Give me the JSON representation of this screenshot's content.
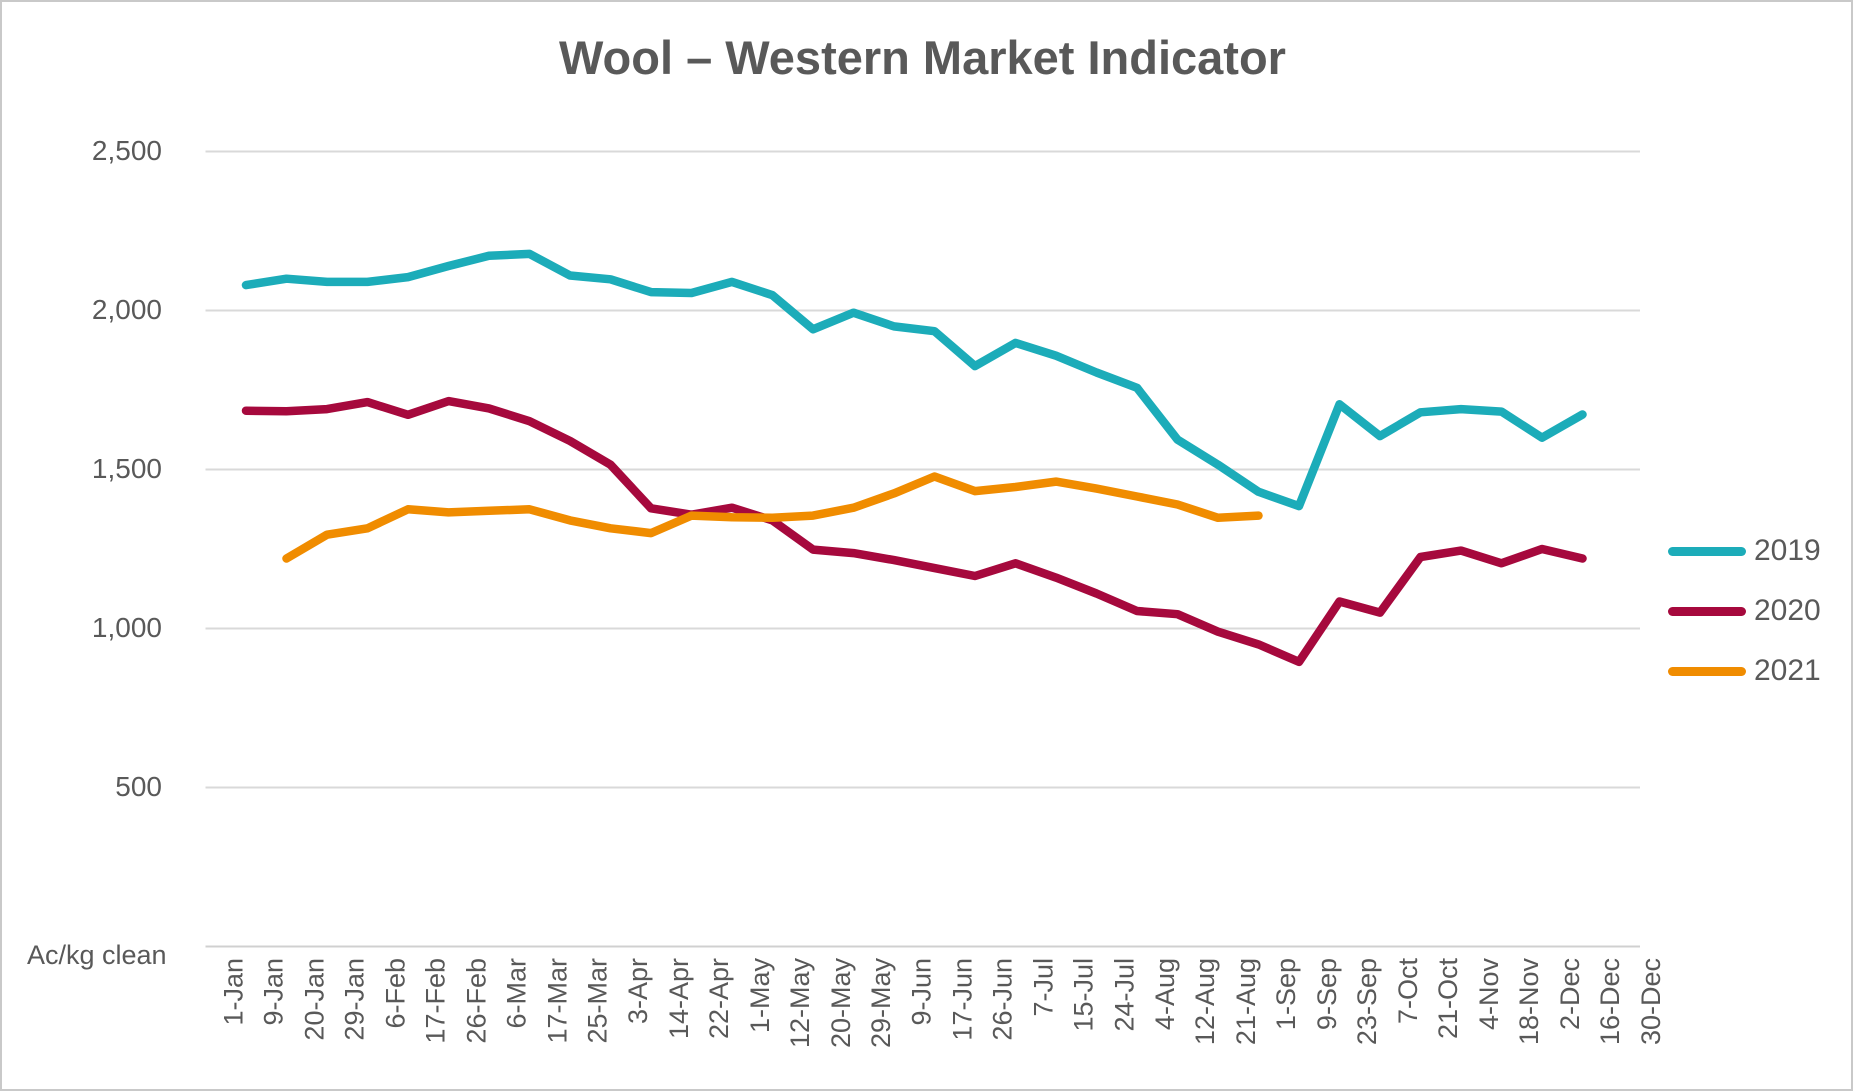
{
  "title": "Wool – Western Market Indicator",
  "axis_note": "Ac/kg clean",
  "colors": {
    "series_2019": "#1CACB9",
    "series_2020": "#A6093D",
    "series_2021": "#F08C00",
    "gridline": "#D9D9D9",
    "axis_line": "#D0D0D0",
    "text": "#595959"
  },
  "chart_data": {
    "type": "line",
    "title": "Wool – Western Market Indicator",
    "unit_label": "Ac/kg clean",
    "grid": "horizontal",
    "legend_position": "right",
    "ylim": [
      0,
      2500
    ],
    "y_ticks": [
      {
        "value": 2500,
        "label": "2,500"
      },
      {
        "value": 2000,
        "label": "2,000"
      },
      {
        "value": 1500,
        "label": "1,500"
      },
      {
        "value": 1000,
        "label": "1,000"
      },
      {
        "value": 500,
        "label": "500"
      }
    ],
    "categories": [
      "1-Jan",
      "9-Jan",
      "20-Jan",
      "29-Jan",
      "6-Feb",
      "17-Feb",
      "26-Feb",
      "6-Mar",
      "17-Mar",
      "25-Mar",
      "3-Apr",
      "14-Apr",
      "22-Apr",
      "1-May",
      "12-May",
      "20-May",
      "29-May",
      "9-Jun",
      "17-Jun",
      "26-Jun",
      "7-Jul",
      "15-Jul",
      "24-Jul",
      "4-Aug",
      "12-Aug",
      "21-Aug",
      "1-Sep",
      "9-Sep",
      "23-Sep",
      "7-Oct",
      "21-Oct",
      "4-Nov",
      "18-Nov",
      "2-Dec",
      "16-Dec",
      "30-Dec"
    ],
    "series": [
      {
        "name": "2019",
        "color": "#1CACB9",
        "values": [
          null,
          2080,
          2100,
          2090,
          2090,
          2105,
          2140,
          2172,
          2178,
          2110,
          2098,
          2058,
          2055,
          2090,
          2048,
          1941,
          1993,
          1950,
          1935,
          1825,
          1898,
          1858,
          1805,
          1757,
          1594,
          1515,
          1430,
          1385,
          1705,
          1605,
          1680,
          1690,
          1682,
          1600,
          1673,
          null
        ]
      },
      {
        "name": "2020",
        "color": "#A6093D",
        "values": [
          null,
          1685,
          1683,
          1690,
          1712,
          1672,
          1715,
          1692,
          1652,
          1590,
          1515,
          1378,
          1358,
          1380,
          1340,
          1248,
          1237,
          1215,
          1190,
          1165,
          1205,
          1160,
          1110,
          1055,
          1045,
          990,
          950,
          895,
          1085,
          1050,
          1225,
          1245,
          1205,
          1250,
          1220,
          null
        ]
      },
      {
        "name": "2021",
        "color": "#F08C00",
        "values": [
          null,
          null,
          1220,
          1295,
          1315,
          1375,
          1365,
          1370,
          1375,
          1340,
          1315,
          1300,
          1355,
          1350,
          1348,
          1355,
          1380,
          1425,
          1478,
          1432,
          1445,
          1462,
          1440,
          1415,
          1390,
          1348,
          1355,
          null,
          null,
          null,
          null,
          null,
          null,
          null,
          null,
          null
        ]
      }
    ]
  },
  "legend": [
    {
      "label": "2019",
      "color": "#1CACB9"
    },
    {
      "label": "2020",
      "color": "#A6093D"
    },
    {
      "label": "2021",
      "color": "#F08C00"
    }
  ]
}
